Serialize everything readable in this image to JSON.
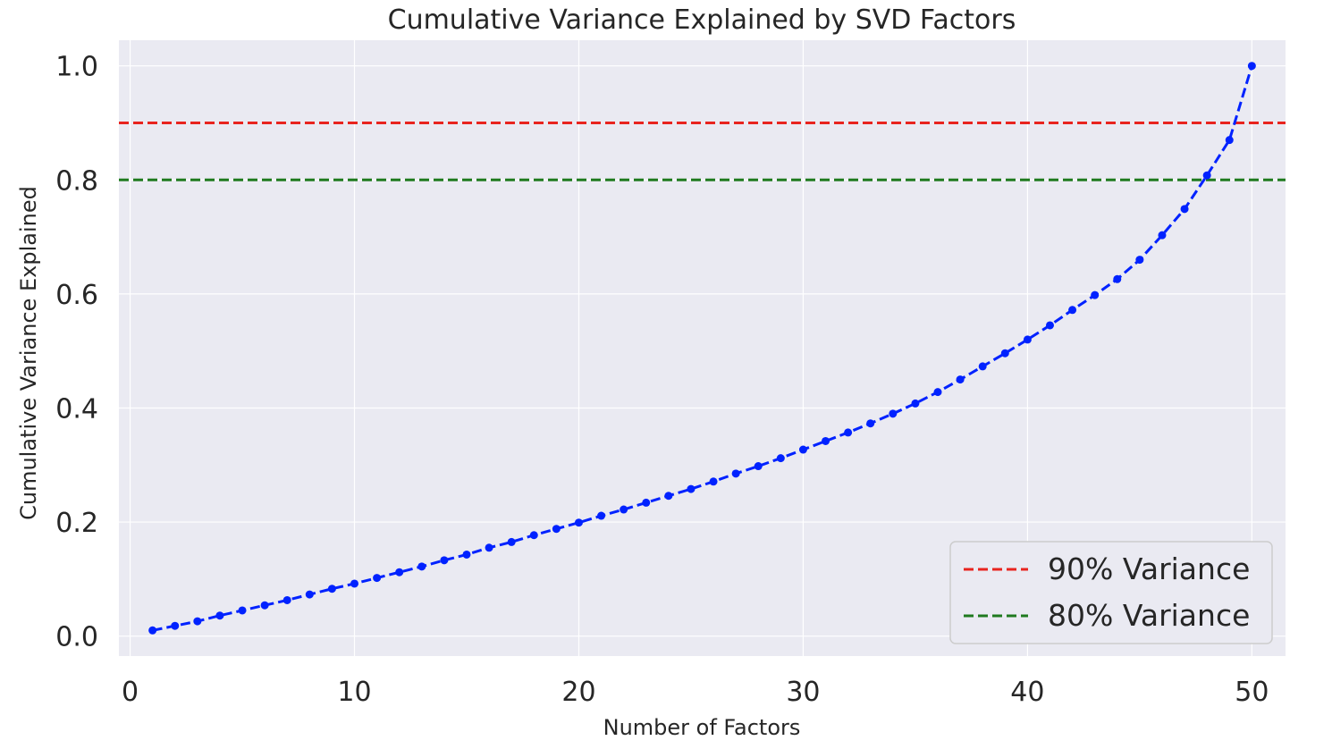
{
  "chart_data": {
    "type": "line",
    "title": "Cumulative Variance Explained by SVD Factors",
    "xlabel": "Number of Factors",
    "ylabel": "Cumulative Variance Explained",
    "xlim": [
      -0.5,
      51.5
    ],
    "ylim": [
      -0.035,
      1.045
    ],
    "x_ticks": [
      0,
      10,
      20,
      30,
      40,
      50
    ],
    "y_ticks": [
      0.0,
      0.2,
      0.4,
      0.6,
      0.8,
      1.0
    ],
    "x_tick_labels": [
      "0",
      "10",
      "20",
      "30",
      "40",
      "50"
    ],
    "y_tick_labels": [
      "0.0",
      "0.2",
      "0.4",
      "0.6",
      "0.8",
      "1.0"
    ],
    "grid": true,
    "legend_position": "bottom-right",
    "colors": {
      "background": "#eaeaf2",
      "grid": "#ffffff",
      "series": "#0022ff",
      "threshold_90": "#e8241f",
      "threshold_80": "#1f7a1f"
    },
    "series": [
      {
        "line_style": "dashed",
        "marker": "circle",
        "x": [
          1,
          2,
          3,
          4,
          5,
          6,
          7,
          8,
          9,
          10,
          11,
          12,
          13,
          14,
          15,
          16,
          17,
          18,
          19,
          20,
          21,
          22,
          23,
          24,
          25,
          26,
          27,
          28,
          29,
          30,
          31,
          32,
          33,
          34,
          35,
          36,
          37,
          38,
          39,
          40,
          41,
          42,
          43,
          44,
          45,
          46,
          47,
          48,
          49,
          50
        ],
        "values": [
          0.01,
          0.018,
          0.026,
          0.036,
          0.045,
          0.054,
          0.063,
          0.073,
          0.083,
          0.092,
          0.102,
          0.112,
          0.122,
          0.133,
          0.143,
          0.155,
          0.165,
          0.177,
          0.188,
          0.199,
          0.211,
          0.222,
          0.234,
          0.246,
          0.258,
          0.271,
          0.285,
          0.298,
          0.312,
          0.327,
          0.342,
          0.357,
          0.373,
          0.39,
          0.408,
          0.428,
          0.45,
          0.473,
          0.496,
          0.52,
          0.545,
          0.572,
          0.598,
          0.626,
          0.66,
          0.703,
          0.749,
          0.808,
          0.87,
          1.0
        ]
      }
    ],
    "reference_lines": [
      {
        "name": "90% Variance",
        "y": 0.9,
        "line_style": "dashed",
        "color": "#e8241f"
      },
      {
        "name": "80% Variance",
        "y": 0.8,
        "line_style": "dashed",
        "color": "#1f7a1f"
      }
    ]
  }
}
